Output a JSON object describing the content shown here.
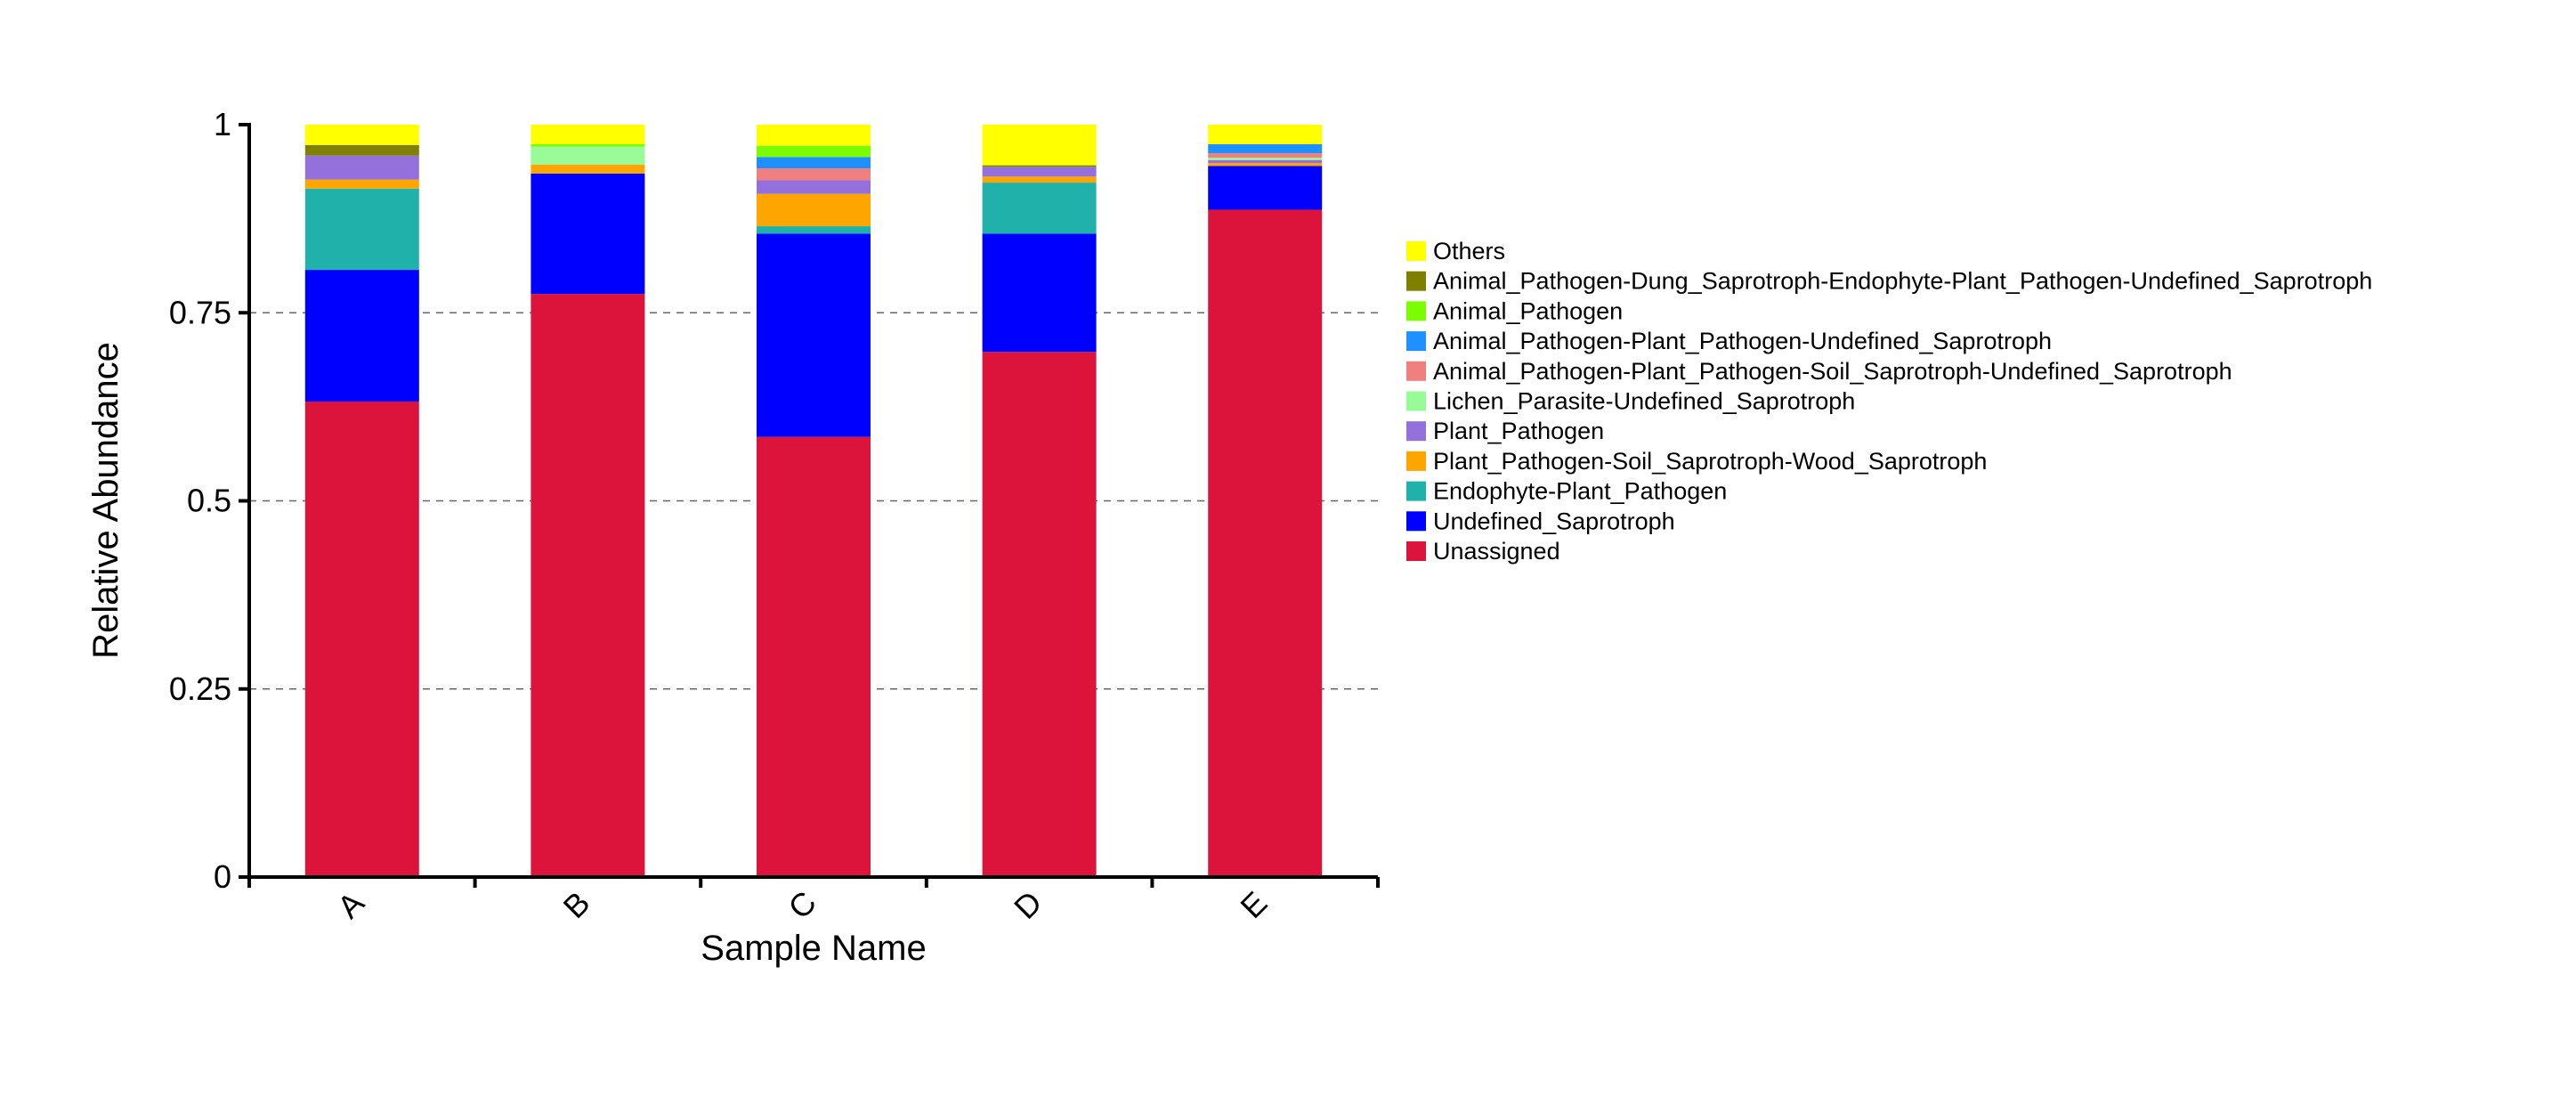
{
  "chart_data": {
    "type": "bar",
    "stacked": true,
    "xlabel": "Sample Name",
    "ylabel": "Relative Abundance",
    "ylim": [
      0,
      1
    ],
    "yticks": [
      0,
      0.25,
      0.5,
      0.75,
      1
    ],
    "ytick_labels": [
      "0",
      "0.25",
      "0.5",
      "0.75",
      "1"
    ],
    "grid": "horizontal dashed at 0.25, 0.5, 0.75",
    "legend_position": "right",
    "categories": [
      "A",
      "B",
      "C",
      "D",
      "E"
    ],
    "series": [
      {
        "name": "Unassigned",
        "color": "#DC143C",
        "values": [
          0.632,
          0.775,
          0.585,
          0.698,
          0.887
        ]
      },
      {
        "name": "Undefined_Saprotroph",
        "color": "#0000FF",
        "values": [
          0.175,
          0.16,
          0.27,
          0.157,
          0.058
        ]
      },
      {
        "name": "Endophyte-Plant_Pathogen",
        "color": "#20B2AA",
        "values": [
          0.108,
          0.0,
          0.01,
          0.068,
          0.0
        ]
      },
      {
        "name": "Plant_Pathogen-Soil_Saprotroph-Wood_Saprotroph",
        "color": "#FFA500",
        "values": [
          0.012,
          0.012,
          0.043,
          0.008,
          0.004
        ]
      },
      {
        "name": "Plant_Pathogen",
        "color": "#9370DB",
        "values": [
          0.032,
          0.0,
          0.018,
          0.013,
          0.004
        ]
      },
      {
        "name": "Lichen_Parasite-Undefined_Saprotroph",
        "color": "#98FB98",
        "values": [
          0.0,
          0.024,
          0.0,
          0.0,
          0.003
        ]
      },
      {
        "name": "Animal_Pathogen-Plant_Pathogen-Soil_Saprotroph-Undefined_Saprotroph",
        "color": "#F08080",
        "values": [
          0.0,
          0.0,
          0.016,
          0.0,
          0.006
        ]
      },
      {
        "name": "Animal_Pathogen-Plant_Pathogen-Undefined_Saprotroph",
        "color": "#1E90FF",
        "values": [
          0.0,
          0.0,
          0.015,
          0.0,
          0.012
        ]
      },
      {
        "name": "Animal_Pathogen",
        "color": "#7CFC00",
        "values": [
          0.0,
          0.003,
          0.015,
          0.0,
          0.0
        ]
      },
      {
        "name": "Animal_Pathogen-Dung_Saprotroph-Endophyte-Plant_Pathogen-Undefined_Saprotroph",
        "color": "#808000",
        "values": [
          0.014,
          0.0,
          0.0,
          0.002,
          0.0
        ]
      },
      {
        "name": "Others",
        "color": "#FFFF00",
        "values": [
          0.027,
          0.026,
          0.028,
          0.054,
          0.026
        ]
      }
    ],
    "legend_order": [
      "Others",
      "Animal_Pathogen-Dung_Saprotroph-Endophyte-Plant_Pathogen-Undefined_Saprotroph",
      "Animal_Pathogen",
      "Animal_Pathogen-Plant_Pathogen-Undefined_Saprotroph",
      "Animal_Pathogen-Plant_Pathogen-Soil_Saprotroph-Undefined_Saprotroph",
      "Lichen_Parasite-Undefined_Saprotroph",
      "Plant_Pathogen",
      "Plant_Pathogen-Soil_Saprotroph-Wood_Saprotroph",
      "Endophyte-Plant_Pathogen",
      "Undefined_Saprotroph",
      "Unassigned"
    ]
  }
}
